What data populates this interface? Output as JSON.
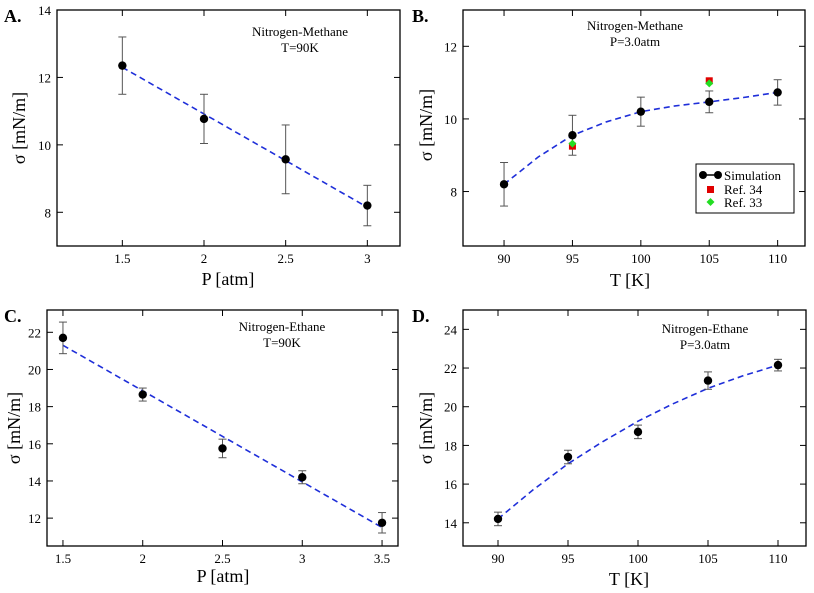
{
  "chart_data": [
    {
      "panel_label": "A.",
      "type": "line",
      "annotation": [
        "Nitrogen-Methane",
        "T=90K"
      ],
      "xlabel": "P [atm]",
      "ylabel": "σ [mN/m]",
      "xlim": [
        1.1,
        3.2
      ],
      "ylim": [
        7.0,
        14.0
      ],
      "xticks": [
        1.5,
        2,
        2.5,
        3
      ],
      "xtick_labels": [
        "1.5",
        "2",
        "2.5",
        "3"
      ],
      "yticks": [
        8,
        10,
        12,
        14
      ],
      "ytick_labels": [
        "8",
        "10",
        "12",
        "14"
      ],
      "simulation": {
        "x": [
          1.5,
          2,
          2.5,
          3
        ],
        "y": [
          12.35,
          10.77,
          9.57,
          8.2
        ],
        "err": [
          0.85,
          0.73,
          1.02,
          0.6
        ]
      },
      "fit": {
        "x": [
          1.5,
          3
        ],
        "y": [
          12.3,
          8.15
        ]
      }
    },
    {
      "panel_label": "B.",
      "type": "line",
      "annotation": [
        "Nitrogen-Methane",
        "P=3.0atm"
      ],
      "xlabel": "T [K]",
      "ylabel": "σ [mN/m]",
      "xlim": [
        87,
        112
      ],
      "ylim": [
        6.5,
        13.0
      ],
      "xticks": [
        90,
        95,
        100,
        105,
        110
      ],
      "xtick_labels": [
        "90",
        "95",
        "100",
        "105",
        "110"
      ],
      "yticks": [
        8,
        10,
        12
      ],
      "ytick_labels": [
        "8",
        "10",
        "12"
      ],
      "simulation": {
        "x": [
          90,
          95,
          100,
          105,
          110
        ],
        "y": [
          8.2,
          9.55,
          10.2,
          10.47,
          10.73
        ],
        "err": [
          0.6,
          0.55,
          0.4,
          0.3,
          0.35
        ]
      },
      "fit": {
        "x": [
          90,
          92.5,
          95,
          97.5,
          100,
          102.5,
          105,
          107.5,
          110
        ],
        "y": [
          8.2,
          8.95,
          9.55,
          9.92,
          10.2,
          10.36,
          10.47,
          10.59,
          10.73
        ]
      },
      "ref34": {
        "x": [
          95,
          105
        ],
        "y": [
          9.25,
          11.05
        ]
      },
      "ref33": {
        "x": [
          95,
          105
        ],
        "y": [
          9.32,
          10.98
        ]
      },
      "legend": [
        "Simulation",
        "Ref. 34",
        "Ref. 33"
      ]
    },
    {
      "panel_label": "C.",
      "type": "line",
      "annotation": [
        "Nitrogen-Ethane",
        "T=90K"
      ],
      "xlabel": "P [atm]",
      "ylabel": "σ [mN/m]",
      "xlim": [
        1.4,
        3.6
      ],
      "ylim": [
        10.5,
        23.2
      ],
      "xticks": [
        1.5,
        2,
        2.5,
        3,
        3.5
      ],
      "xtick_labels": [
        "1.5",
        "2",
        "2.5",
        "3",
        "3.5"
      ],
      "yticks": [
        12,
        14,
        16,
        18,
        20,
        22
      ],
      "ytick_labels": [
        "12",
        "14",
        "16",
        "18",
        "20",
        "22"
      ],
      "simulation": {
        "x": [
          1.5,
          2,
          2.5,
          3,
          3.5
        ],
        "y": [
          21.7,
          18.65,
          15.75,
          14.2,
          11.75
        ],
        "err": [
          0.85,
          0.35,
          0.5,
          0.35,
          0.55
        ]
      },
      "fit": {
        "x": [
          1.5,
          3.5
        ],
        "y": [
          21.3,
          11.5
        ]
      }
    },
    {
      "panel_label": "D.",
      "type": "line",
      "annotation": [
        "Nitrogen-Ethane",
        "P=3.0atm"
      ],
      "xlabel": "T [K]",
      "ylabel": "σ [mN/m]",
      "xlim": [
        87.5,
        112
      ],
      "ylim": [
        12.8,
        25.0
      ],
      "xticks": [
        90,
        95,
        100,
        105,
        110
      ],
      "xtick_labels": [
        "90",
        "95",
        "100",
        "105",
        "110"
      ],
      "yticks": [
        14,
        16,
        18,
        20,
        22,
        24
      ],
      "ytick_labels": [
        "14",
        "16",
        "18",
        "20",
        "22",
        "24"
      ],
      "simulation": {
        "x": [
          90,
          95,
          100,
          105,
          110
        ],
        "y": [
          14.2,
          17.4,
          18.7,
          21.35,
          22.15
        ],
        "err": [
          0.35,
          0.35,
          0.35,
          0.45,
          0.3
        ]
      },
      "fit": {
        "x": [
          90,
          92.5,
          95,
          97.5,
          100,
          102.5,
          105,
          107.5,
          110
        ],
        "y": [
          14.2,
          15.7,
          17.05,
          18.2,
          19.25,
          20.15,
          20.95,
          21.6,
          22.15
        ]
      }
    }
  ],
  "colors": {
    "fit_line": "#1f2fd9",
    "marker": "#000000",
    "ref34": "#e00000",
    "ref33": "#22dd22",
    "axis": "#000000"
  }
}
